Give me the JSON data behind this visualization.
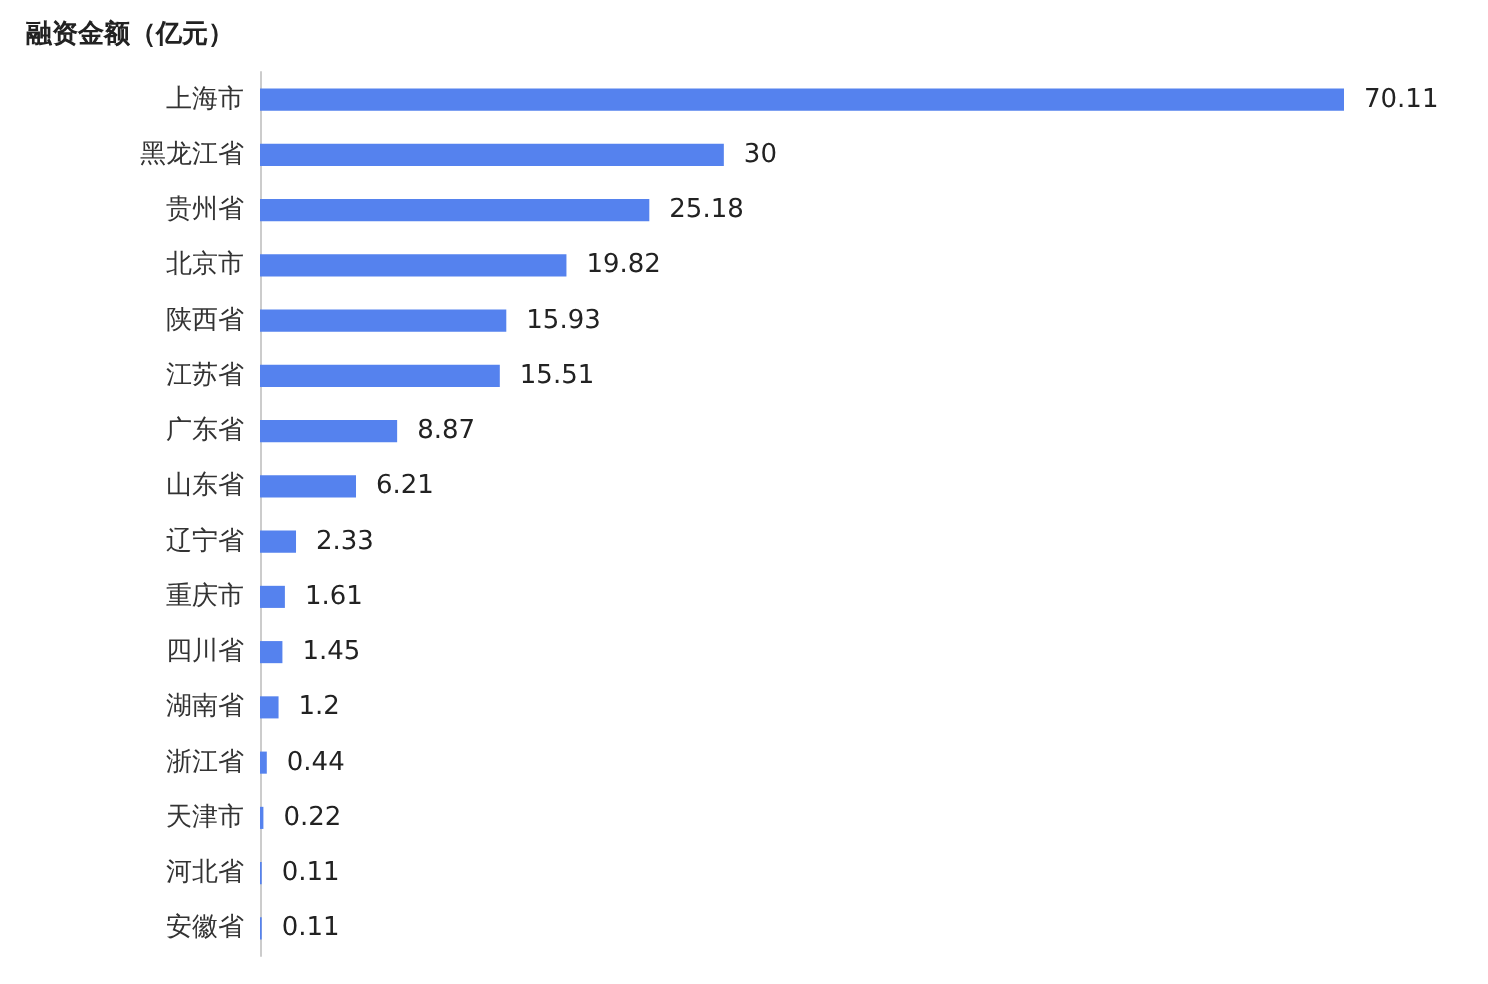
{
  "chart_data": {
    "type": "bar",
    "orientation": "horizontal",
    "title": "融资金额（亿元）",
    "categories": [
      "上海市",
      "黑龙江省",
      "贵州省",
      "北京市",
      "陕西省",
      "江苏省",
      "广东省",
      "山东省",
      "辽宁省",
      "重庆市",
      "四川省",
      "湖南省",
      "浙江省",
      "天津市",
      "河北省",
      "安徽省"
    ],
    "values": [
      70.11,
      30,
      25.18,
      19.82,
      15.93,
      15.51,
      8.87,
      6.21,
      2.33,
      1.61,
      1.45,
      1.2,
      0.44,
      0.22,
      0.11,
      0.11
    ],
    "color": "#5582ee",
    "data_labels": true
  }
}
